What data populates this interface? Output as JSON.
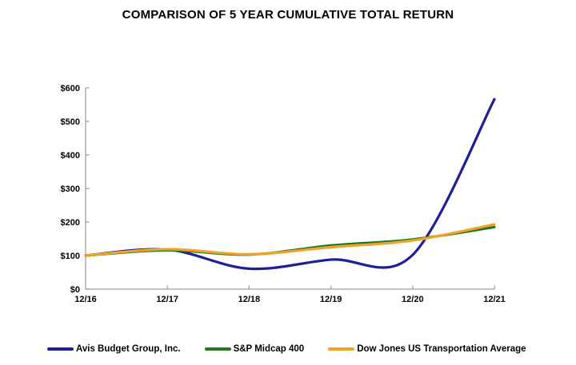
{
  "title": "COMPARISON OF 5 YEAR CUMULATIVE TOTAL RETURN",
  "chart_data": {
    "type": "line",
    "smooth": true,
    "title": "COMPARISON OF 5 YEAR CUMULATIVE TOTAL RETURN",
    "categories": [
      "12/16",
      "12/17",
      "12/18",
      "12/19",
      "12/20",
      "12/21"
    ],
    "y_tick_labels": [
      "$0",
      "$100",
      "$200",
      "$300",
      "$400",
      "$500",
      "$600"
    ],
    "y_tick_values": [
      0,
      100,
      200,
      300,
      400,
      500,
      600
    ],
    "ylim": [
      0,
      600
    ],
    "xlabel": "",
    "ylabel": "",
    "grid": false,
    "legend_position": "bottom",
    "axis_color": "#a0a0a0",
    "label_color": "#000000",
    "series": [
      {
        "name": "Avis Budget Group, Inc.",
        "color": "#1f1f96",
        "values": [
          100,
          118,
          61,
          88,
          102,
          566
        ]
      },
      {
        "name": "S&P Midcap 400",
        "color": "#1f7a1f",
        "values": [
          100,
          116,
          103,
          130,
          148,
          185
        ]
      },
      {
        "name": "Dow Jones US Transportation Average",
        "color": "#f0a32a",
        "values": [
          100,
          119,
          104,
          125,
          145,
          193
        ]
      }
    ]
  }
}
